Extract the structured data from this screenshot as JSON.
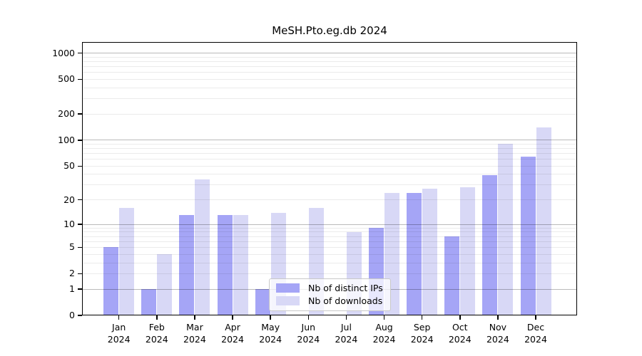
{
  "chart_data": {
    "type": "bar",
    "title": "MeSH.Pto.eg.db 2024",
    "categories": [
      "Jan 2024",
      "Feb 2024",
      "Mar 2024",
      "Apr 2024",
      "May 2024",
      "Jun 2024",
      "Jul 2024",
      "Aug 2024",
      "Sep 2024",
      "Oct 2024",
      "Nov 2024",
      "Dec 2024"
    ],
    "series": [
      {
        "name": "Nb of distinct IPs",
        "color": "#a5a5f6",
        "values": [
          5,
          1,
          13,
          13,
          1,
          0,
          0,
          9,
          24,
          7,
          39,
          65
        ]
      },
      {
        "name": "Nb of downloads",
        "color": "#d8d8f6",
        "values": [
          16,
          4,
          35,
          13,
          14,
          16,
          8,
          24,
          27,
          28,
          90,
          140
        ]
      }
    ],
    "yscale": "log1p",
    "y_ticks": [
      0,
      1,
      2,
      5,
      10,
      20,
      50,
      100,
      200,
      500,
      1000
    ],
    "ylim": [
      0,
      1280
    ],
    "xlabel": "",
    "ylabel": "",
    "grid": true,
    "legend_position": "lower center"
  },
  "colors": {
    "bar_distinct_ips": "#a5a5f6",
    "bar_downloads": "#d8d8f6",
    "grid_major": "#bababa",
    "grid_minor": "#ececec",
    "frame": "#000000",
    "background": "#ffffff"
  }
}
